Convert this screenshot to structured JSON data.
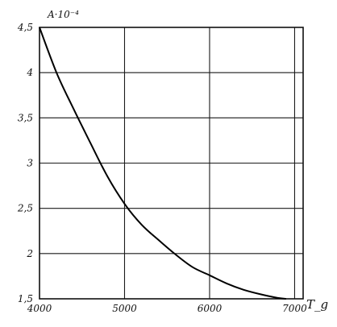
{
  "chart_data": {
    "type": "line",
    "title": "",
    "ylabel": "A·10⁻⁴",
    "xlabel": "T_g",
    "xlim": [
      4000,
      7100
    ],
    "ylim": [
      1.5,
      4.5
    ],
    "grid": true,
    "x_ticks": [
      4000,
      5000,
      6000,
      7000
    ],
    "x_tick_labels": [
      "4000",
      "5000",
      "6000",
      "7000"
    ],
    "y_ticks": [
      1.5,
      2,
      2.5,
      3,
      3.5,
      4,
      4.5
    ],
    "y_tick_labels": [
      "1,5",
      "2",
      "2,5",
      "3",
      "3,5",
      "4",
      "4,5"
    ],
    "series": [
      {
        "x": [
          4000,
          4200,
          4400,
          4600,
          4800,
          5000,
          5200,
          5400,
          5600,
          5800,
          6000,
          6200,
          6400,
          6600,
          6800,
          6900
        ],
        "y": [
          4.5,
          4.0,
          3.6,
          3.22,
          2.85,
          2.55,
          2.32,
          2.15,
          1.99,
          1.85,
          1.76,
          1.67,
          1.6,
          1.55,
          1.51,
          1.5
        ]
      }
    ]
  }
}
